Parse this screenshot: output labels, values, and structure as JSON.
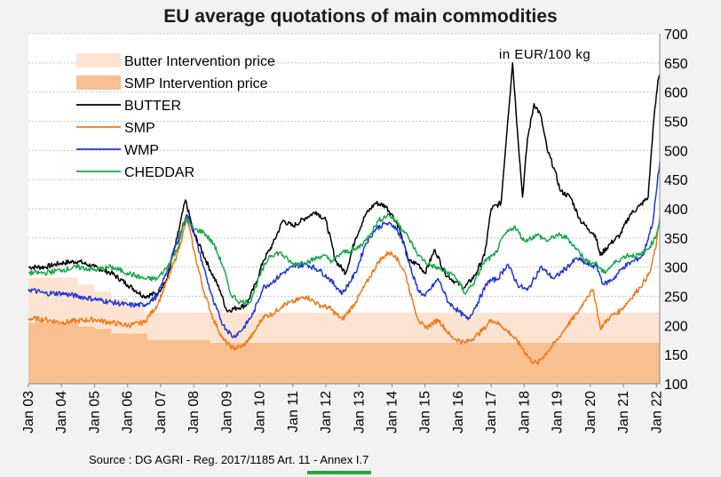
{
  "chart_data": {
    "type": "line",
    "title": "EU average quotations of main commodities",
    "unit": "in EUR/100 kg",
    "source": "Source : DG AGRI - Reg. 2017/1185 Art. 11 - Annex I.7",
    "xlim": [
      2003.0,
      2022.1
    ],
    "ylim": [
      100,
      700
    ],
    "y_ticks": [
      100,
      150,
      200,
      250,
      300,
      350,
      400,
      450,
      500,
      550,
      600,
      650,
      700
    ],
    "x_tick_labels": [
      "Jan 03",
      "Jan 04",
      "Jan 05",
      "Jan 06",
      "Jan 07",
      "Jan 08",
      "Jan 09",
      "Jan 10",
      "Jan 11",
      "Jan 12",
      "Jan 13",
      "Jan 14",
      "Jan 15",
      "Jan 16",
      "Jan 17",
      "Jan 18",
      "Jan 19",
      "Jan 20",
      "Jan 21",
      "Jan 22"
    ],
    "x_tick_values": [
      2003,
      2004,
      2005,
      2006,
      2007,
      2008,
      2009,
      2010,
      2011,
      2012,
      2013,
      2014,
      2015,
      2016,
      2017,
      2018,
      2019,
      2020,
      2021,
      2022
    ],
    "grid": "horizontal",
    "legend": "top-left",
    "areas": [
      {
        "name": "Butter Intervention price",
        "color": "#fde4d2",
        "points": [
          [
            2003.0,
            282
          ],
          [
            2004.5,
            282
          ],
          [
            2004.5,
            270
          ],
          [
            2005.0,
            270
          ],
          [
            2005.0,
            258
          ],
          [
            2005.5,
            258
          ],
          [
            2005.5,
            246
          ],
          [
            2006.0,
            246
          ],
          [
            2006.0,
            234
          ],
          [
            2006.5,
            234
          ],
          [
            2006.5,
            222
          ],
          [
            2022.1,
            222
          ]
        ]
      },
      {
        "name": "SMP Intervention price",
        "color": "#f8bf90",
        "points": [
          [
            2003.0,
            205
          ],
          [
            2004.5,
            205
          ],
          [
            2004.5,
            198
          ],
          [
            2005.0,
            198
          ],
          [
            2005.0,
            194
          ],
          [
            2005.5,
            194
          ],
          [
            2005.5,
            186
          ],
          [
            2006.6,
            186
          ],
          [
            2006.6,
            175
          ],
          [
            2008.5,
            175
          ],
          [
            2008.5,
            170
          ],
          [
            2022.1,
            170
          ]
        ]
      }
    ],
    "series": [
      {
        "name": "BUTTER",
        "color": "#000000",
        "points": [
          [
            2003.0,
            300
          ],
          [
            2003.5,
            300
          ],
          [
            2004.0,
            307
          ],
          [
            2004.5,
            310
          ],
          [
            2005.0,
            300
          ],
          [
            2005.5,
            290
          ],
          [
            2006.0,
            270
          ],
          [
            2006.5,
            250
          ],
          [
            2006.9,
            255
          ],
          [
            2007.2,
            280
          ],
          [
            2007.5,
            350
          ],
          [
            2007.75,
            415
          ],
          [
            2008.0,
            360
          ],
          [
            2008.5,
            295
          ],
          [
            2008.8,
            260
          ],
          [
            2009.0,
            225
          ],
          [
            2009.3,
            230
          ],
          [
            2009.6,
            235
          ],
          [
            2009.9,
            275
          ],
          [
            2010.1,
            310
          ],
          [
            2010.4,
            340
          ],
          [
            2010.7,
            380
          ],
          [
            2011.0,
            370
          ],
          [
            2011.4,
            385
          ],
          [
            2011.7,
            395
          ],
          [
            2012.0,
            380
          ],
          [
            2012.3,
            310
          ],
          [
            2012.6,
            290
          ],
          [
            2012.9,
            350
          ],
          [
            2013.2,
            390
          ],
          [
            2013.5,
            410
          ],
          [
            2013.8,
            405
          ],
          [
            2014.0,
            390
          ],
          [
            2014.2,
            370
          ],
          [
            2014.5,
            310
          ],
          [
            2014.8,
            305
          ],
          [
            2015.0,
            290
          ],
          [
            2015.3,
            330
          ],
          [
            2015.6,
            290
          ],
          [
            2015.9,
            275
          ],
          [
            2016.2,
            265
          ],
          [
            2016.5,
            285
          ],
          [
            2016.8,
            320
          ],
          [
            2017.0,
            400
          ],
          [
            2017.3,
            410
          ],
          [
            2017.5,
            550
          ],
          [
            2017.65,
            650
          ],
          [
            2017.8,
            530
          ],
          [
            2017.95,
            420
          ],
          [
            2018.1,
            520
          ],
          [
            2018.3,
            580
          ],
          [
            2018.5,
            560
          ],
          [
            2018.7,
            500
          ],
          [
            2018.9,
            470
          ],
          [
            2019.1,
            430
          ],
          [
            2019.4,
            420
          ],
          [
            2019.7,
            380
          ],
          [
            2019.95,
            365
          ],
          [
            2020.15,
            355
          ],
          [
            2020.3,
            320
          ],
          [
            2020.6,
            340
          ],
          [
            2020.9,
            355
          ],
          [
            2021.2,
            390
          ],
          [
            2021.5,
            405
          ],
          [
            2021.75,
            420
          ],
          [
            2021.9,
            540
          ],
          [
            2022.05,
            620
          ],
          [
            2022.1,
            630
          ]
        ]
      },
      {
        "name": "SMP",
        "color": "#f07818",
        "points": [
          [
            2003.0,
            212
          ],
          [
            2003.5,
            210
          ],
          [
            2004.0,
            205
          ],
          [
            2004.5,
            208
          ],
          [
            2005.0,
            210
          ],
          [
            2005.5,
            205
          ],
          [
            2006.0,
            200
          ],
          [
            2006.5,
            205
          ],
          [
            2006.9,
            235
          ],
          [
            2007.3,
            290
          ],
          [
            2007.6,
            340
          ],
          [
            2007.8,
            385
          ],
          [
            2008.0,
            330
          ],
          [
            2008.3,
            260
          ],
          [
            2008.6,
            210
          ],
          [
            2008.9,
            175
          ],
          [
            2009.2,
            160
          ],
          [
            2009.5,
            165
          ],
          [
            2009.8,
            185
          ],
          [
            2010.1,
            215
          ],
          [
            2010.4,
            220
          ],
          [
            2010.7,
            235
          ],
          [
            2011.0,
            240
          ],
          [
            2011.4,
            250
          ],
          [
            2011.8,
            235
          ],
          [
            2012.1,
            230
          ],
          [
            2012.5,
            210
          ],
          [
            2012.9,
            240
          ],
          [
            2013.3,
            280
          ],
          [
            2013.6,
            310
          ],
          [
            2013.9,
            325
          ],
          [
            2014.1,
            320
          ],
          [
            2014.4,
            290
          ],
          [
            2014.6,
            245
          ],
          [
            2014.8,
            210
          ],
          [
            2015.0,
            195
          ],
          [
            2015.4,
            210
          ],
          [
            2015.8,
            180
          ],
          [
            2016.2,
            170
          ],
          [
            2016.5,
            180
          ],
          [
            2016.8,
            195
          ],
          [
            2017.0,
            210
          ],
          [
            2017.3,
            200
          ],
          [
            2017.6,
            185
          ],
          [
            2017.9,
            165
          ],
          [
            2018.2,
            140
          ],
          [
            2018.4,
            135
          ],
          [
            2018.7,
            155
          ],
          [
            2019.0,
            175
          ],
          [
            2019.3,
            200
          ],
          [
            2019.6,
            220
          ],
          [
            2019.9,
            250
          ],
          [
            2020.1,
            260
          ],
          [
            2020.3,
            195
          ],
          [
            2020.6,
            215
          ],
          [
            2020.9,
            225
          ],
          [
            2021.2,
            245
          ],
          [
            2021.5,
            265
          ],
          [
            2021.8,
            290
          ],
          [
            2022.0,
            340
          ],
          [
            2022.1,
            385
          ]
        ]
      },
      {
        "name": "WMP",
        "color": "#1f36d6",
        "points": [
          [
            2003.0,
            262
          ],
          [
            2003.5,
            255
          ],
          [
            2004.0,
            255
          ],
          [
            2004.5,
            250
          ],
          [
            2005.0,
            245
          ],
          [
            2005.5,
            240
          ],
          [
            2006.0,
            235
          ],
          [
            2006.5,
            235
          ],
          [
            2006.9,
            250
          ],
          [
            2007.3,
            310
          ],
          [
            2007.6,
            360
          ],
          [
            2007.8,
            390
          ],
          [
            2008.0,
            360
          ],
          [
            2008.3,
            300
          ],
          [
            2008.6,
            240
          ],
          [
            2008.9,
            200
          ],
          [
            2009.2,
            180
          ],
          [
            2009.5,
            195
          ],
          [
            2009.8,
            220
          ],
          [
            2010.1,
            265
          ],
          [
            2010.4,
            275
          ],
          [
            2010.7,
            290
          ],
          [
            2011.0,
            300
          ],
          [
            2011.4,
            305
          ],
          [
            2011.8,
            295
          ],
          [
            2012.1,
            280
          ],
          [
            2012.5,
            255
          ],
          [
            2012.9,
            290
          ],
          [
            2013.2,
            340
          ],
          [
            2013.5,
            365
          ],
          [
            2013.8,
            375
          ],
          [
            2014.1,
            370
          ],
          [
            2014.4,
            335
          ],
          [
            2014.6,
            290
          ],
          [
            2014.8,
            260
          ],
          [
            2015.0,
            250
          ],
          [
            2015.4,
            280
          ],
          [
            2015.7,
            240
          ],
          [
            2016.0,
            225
          ],
          [
            2016.3,
            210
          ],
          [
            2016.6,
            240
          ],
          [
            2016.9,
            275
          ],
          [
            2017.2,
            280
          ],
          [
            2017.5,
            305
          ],
          [
            2017.8,
            270
          ],
          [
            2018.1,
            260
          ],
          [
            2018.5,
            300
          ],
          [
            2018.9,
            280
          ],
          [
            2019.3,
            300
          ],
          [
            2019.6,
            315
          ],
          [
            2019.9,
            305
          ],
          [
            2020.2,
            300
          ],
          [
            2020.4,
            270
          ],
          [
            2020.7,
            280
          ],
          [
            2021.0,
            300
          ],
          [
            2021.3,
            310
          ],
          [
            2021.6,
            320
          ],
          [
            2021.9,
            380
          ],
          [
            2022.1,
            480
          ]
        ]
      },
      {
        "name": "CHEDDAR",
        "color": "#1aa84a",
        "points": [
          [
            2003.0,
            290
          ],
          [
            2003.5,
            290
          ],
          [
            2004.0,
            295
          ],
          [
            2004.5,
            300
          ],
          [
            2005.0,
            295
          ],
          [
            2005.5,
            300
          ],
          [
            2006.0,
            290
          ],
          [
            2006.5,
            280
          ],
          [
            2006.9,
            280
          ],
          [
            2007.2,
            300
          ],
          [
            2007.5,
            330
          ],
          [
            2007.75,
            385
          ],
          [
            2008.0,
            365
          ],
          [
            2008.3,
            360
          ],
          [
            2008.6,
            340
          ],
          [
            2008.9,
            300
          ],
          [
            2009.1,
            255
          ],
          [
            2009.4,
            240
          ],
          [
            2009.7,
            240
          ],
          [
            2010.0,
            285
          ],
          [
            2010.3,
            320
          ],
          [
            2010.6,
            325
          ],
          [
            2011.0,
            305
          ],
          [
            2011.5,
            310
          ],
          [
            2011.9,
            320
          ],
          [
            2012.2,
            310
          ],
          [
            2012.5,
            325
          ],
          [
            2012.9,
            330
          ],
          [
            2013.2,
            345
          ],
          [
            2013.6,
            380
          ],
          [
            2013.9,
            390
          ],
          [
            2014.2,
            375
          ],
          [
            2014.5,
            350
          ],
          [
            2014.8,
            320
          ],
          [
            2015.1,
            305
          ],
          [
            2015.5,
            295
          ],
          [
            2015.9,
            285
          ],
          [
            2016.2,
            255
          ],
          [
            2016.5,
            275
          ],
          [
            2016.8,
            310
          ],
          [
            2017.1,
            320
          ],
          [
            2017.4,
            355
          ],
          [
            2017.7,
            370
          ],
          [
            2018.0,
            345
          ],
          [
            2018.4,
            355
          ],
          [
            2018.7,
            345
          ],
          [
            2019.0,
            355
          ],
          [
            2019.3,
            350
          ],
          [
            2019.6,
            330
          ],
          [
            2019.9,
            310
          ],
          [
            2020.2,
            305
          ],
          [
            2020.4,
            290
          ],
          [
            2020.8,
            310
          ],
          [
            2021.1,
            320
          ],
          [
            2021.5,
            320
          ],
          [
            2021.8,
            335
          ],
          [
            2022.0,
            355
          ],
          [
            2022.1,
            380
          ]
        ]
      }
    ]
  }
}
